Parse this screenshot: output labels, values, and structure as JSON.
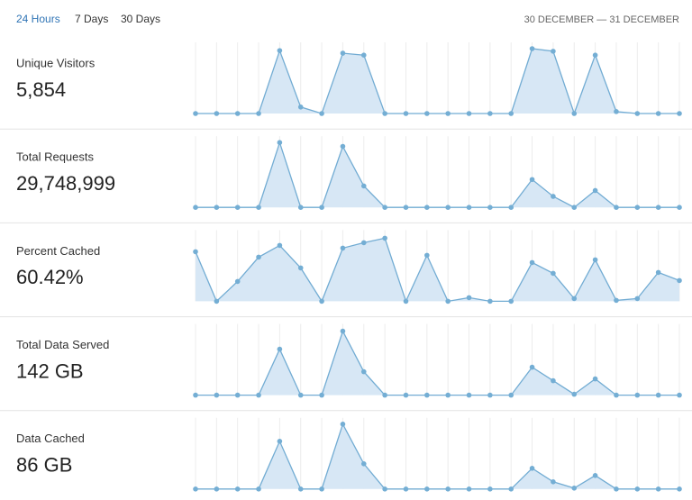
{
  "tabs": [
    "24 Hours",
    "7 Days",
    "30 Days"
  ],
  "date_range": "30 DECEMBER — 31 DECEMBER",
  "chart_data": [
    {
      "type": "area",
      "title": "Unique Visitors",
      "total": "5,854",
      "ylim": [
        0,
        100
      ],
      "values": [
        0,
        0,
        0,
        0,
        97,
        10,
        0,
        93,
        90,
        0,
        0,
        0,
        0,
        0,
        0,
        0,
        100,
        96,
        0,
        90,
        3,
        0,
        0,
        0
      ]
    },
    {
      "type": "area",
      "title": "Total Requests",
      "total": "29,748,999",
      "ylim": [
        0,
        100
      ],
      "values": [
        0,
        0,
        0,
        0,
        100,
        0,
        0,
        94,
        33,
        0,
        0,
        0,
        0,
        0,
        0,
        0,
        43,
        17,
        0,
        26,
        0,
        0,
        0,
        0
      ]
    },
    {
      "type": "area",
      "title": "Percent Cached",
      "total": "60.42%",
      "ylim": [
        0,
        72
      ],
      "values": [
        55,
        0,
        22,
        49,
        62,
        37,
        0,
        59,
        65,
        70,
        0,
        51,
        0,
        4,
        0,
        0,
        43,
        31,
        3,
        46,
        1,
        3,
        32,
        23
      ]
    },
    {
      "type": "area",
      "title": "Total Data Served",
      "total": "142 GB",
      "ylim": [
        0,
        72
      ],
      "values": [
        0,
        0,
        0,
        0,
        51,
        0,
        0,
        71,
        26,
        0,
        0,
        0,
        0,
        0,
        0,
        0,
        31,
        16,
        1,
        18,
        0,
        0,
        0,
        0
      ]
    },
    {
      "type": "area",
      "title": "Data Cached",
      "total": "86 GB",
      "ylim": [
        0,
        72
      ],
      "values": [
        0,
        0,
        0,
        0,
        53,
        0,
        0,
        72,
        28,
        0,
        0,
        0,
        0,
        0,
        0,
        0,
        23,
        8,
        1,
        15,
        0,
        0,
        0,
        0
      ]
    }
  ]
}
